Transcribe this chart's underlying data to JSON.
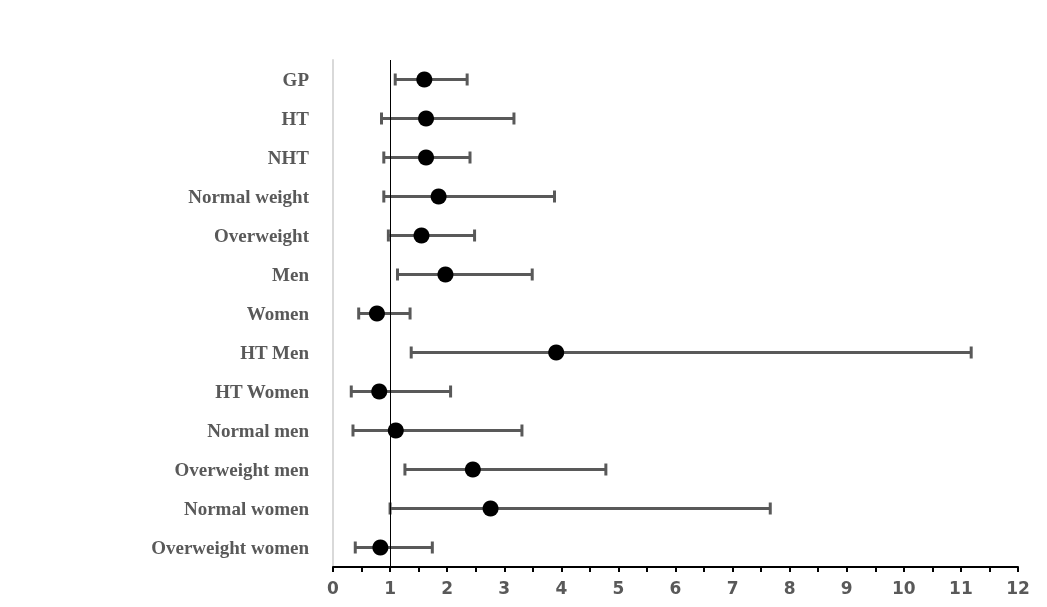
{
  "chart_data": {
    "type": "scatter",
    "orientation": "horizontal",
    "categories": [
      "GP",
      "HT",
      "NHT",
      "Normal weight",
      "Overweight",
      "Men",
      "Women",
      "HT Men",
      "HT Women",
      "Normal men",
      "Overweight men",
      "Normal women",
      "Overweight women"
    ],
    "series": [
      {
        "color": "#000000",
        "values": [
          1.6,
          1.63,
          1.63,
          1.85,
          1.55,
          1.97,
          0.77,
          3.91,
          0.81,
          1.1,
          2.45,
          2.76,
          0.83
        ],
        "errors": [
          [
            1.09,
            2.35
          ],
          [
            0.85,
            3.17
          ],
          [
            0.89,
            2.4
          ],
          [
            0.89,
            3.88
          ],
          [
            0.97,
            2.48
          ],
          [
            1.13,
            3.49
          ],
          [
            0.45,
            1.35
          ],
          [
            1.37,
            11.18
          ],
          [
            0.32,
            2.06
          ],
          [
            0.35,
            3.31
          ],
          [
            1.26,
            4.78
          ],
          [
            1.0,
            7.66
          ],
          [
            0.39,
            1.74
          ]
        ]
      }
    ],
    "xlim": [
      0,
      12
    ],
    "xticks": [
      0,
      {
        "value": 0.5,
        "label": null
      },
      1,
      {
        "value": 1.5,
        "label": null
      },
      2,
      {
        "value": 2.5,
        "label": null
      },
      3,
      {
        "value": 3.5,
        "label": null
      },
      4,
      {
        "value": 4.5,
        "label": null
      },
      5,
      {
        "value": 5.5,
        "label": null
      },
      6,
      {
        "value": 6.5,
        "label": null
      },
      7,
      {
        "value": 7.5,
        "label": null
      },
      8,
      {
        "value": 8.5,
        "label": null
      },
      9,
      {
        "value": 9.5,
        "label": null
      },
      10,
      {
        "value": 10.5,
        "label": null
      },
      11,
      {
        "value": 11.5,
        "label": null
      },
      12
    ],
    "ref_lines": [
      {
        "axis": "x",
        "value": 1,
        "color": "#000000"
      }
    ],
    "marker": "circle",
    "grid": false
  }
}
